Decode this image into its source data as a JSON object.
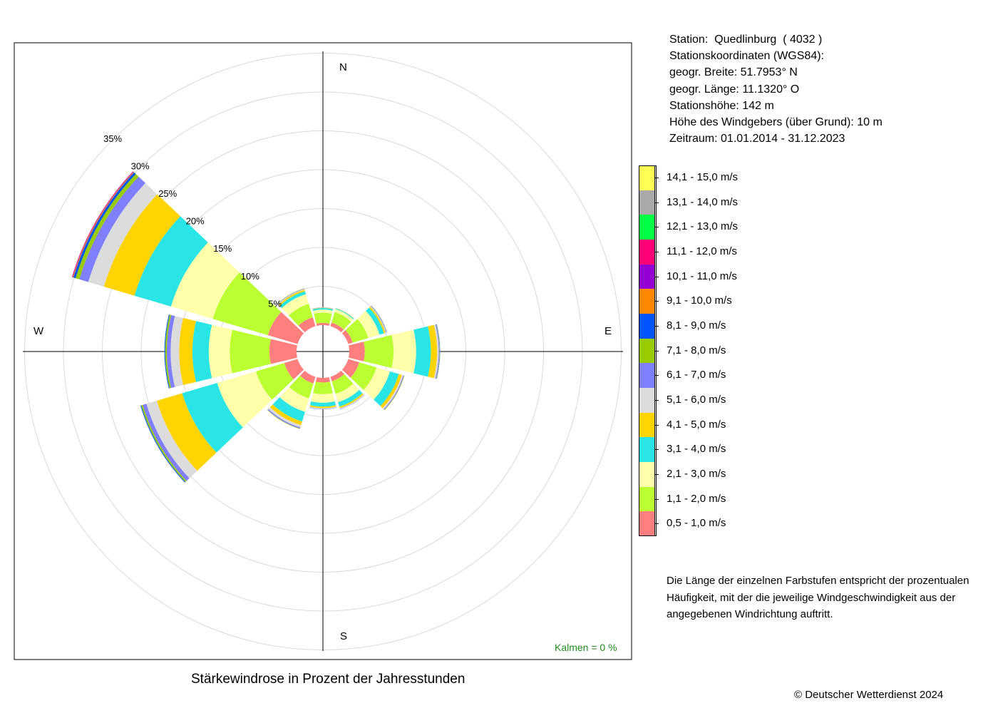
{
  "station_info": [
    "Station:  Quedlinburg  ( 4032 )",
    "Stationskoordinaten (WGS84):",
    "geogr. Breite: 51.7953° N",
    "geogr. Länge: 11.1320° O",
    "Stationshöhe: 142 m",
    "Höhe des Windgebers (über Grund): 10 m",
    "Zeitraum: 01.01.2014 - 31.12.2023"
  ],
  "legend": [
    {
      "label": "14,1 - 15,0 m/s",
      "color": "#ffff55"
    },
    {
      "label": "13,1 - 14,0 m/s",
      "color": "#a9a9a9"
    },
    {
      "label": "12,1 - 13,0 m/s",
      "color": "#00ff44"
    },
    {
      "label": "11,1 - 12,0 m/s",
      "color": "#ff0077"
    },
    {
      "label": "10,1 - 11,0 m/s",
      "color": "#9400d3"
    },
    {
      "label": "9,1 - 10,0 m/s",
      "color": "#ff8800"
    },
    {
      "label": "8,1 - 9,0 m/s",
      "color": "#0055ff"
    },
    {
      "label": "7,1 - 8,0 m/s",
      "color": "#99cc00"
    },
    {
      "label": "6,1 - 7,0 m/s",
      "color": "#8080ff"
    },
    {
      "label": "5,1 - 6,0 m/s",
      "color": "#dcdcdc"
    },
    {
      "label": "4,1 - 5,0 m/s",
      "color": "#ffd400"
    },
    {
      "label": "3,1 - 4,0 m/s",
      "color": "#2ae5e5"
    },
    {
      "label": "2,1 - 3,0 m/s",
      "color": "#ffffaa"
    },
    {
      "label": "1,1 - 2,0 m/s",
      "color": "#bbff33"
    },
    {
      "label": "0,5 - 1,0 m/s",
      "color": "#ff7f7f"
    }
  ],
  "note": "Die Länge der einzelnen Farbstufen entspricht der prozentualen Häufigkeit, mit der die jeweilige Windgeschwindigkeit aus der angegebenen Windrichtung auftritt.",
  "caption": "Stärkewindrose in Prozent der Jahresstunden",
  "copyright": "© Deutscher Wetterdienst  2024",
  "calm_label": "Kalmen  =  0 %",
  "calm_color": "#228b22",
  "compass": {
    "n": "N",
    "e": "E",
    "s": "S",
    "w": "W"
  },
  "chart_data": {
    "type": "windrose",
    "unit": "%",
    "rings": [
      5,
      10,
      15,
      20,
      25,
      30,
      35
    ],
    "ring_labels": [
      "5%",
      "10%",
      "15%",
      "20%",
      "25%",
      "30%",
      "35%"
    ],
    "calm_percent": 0,
    "directions_deg": [
      0,
      30,
      60,
      90,
      120,
      150,
      180,
      210,
      240,
      270,
      300,
      330
    ],
    "speed_classes": [
      "0,5 - 1,0 m/s",
      "1,1 - 2,0 m/s",
      "2,1 - 3,0 m/s",
      "3,1 - 4,0 m/s",
      "4,1 - 5,0 m/s",
      "5,1 - 6,0 m/s",
      "6,1 - 7,0 m/s",
      "7,1 - 8,0 m/s",
      "8,1 - 9,0 m/s",
      "9,1 - 10,0 m/s",
      "10,1 - 11,0 m/s",
      "11,1 - 12,0 m/s",
      "12,1 - 13,0 m/s",
      "13,1 - 14,0 m/s",
      "14,1 - 15,0 m/s"
    ],
    "series": [
      {
        "direction_deg": 0,
        "values": [
          0.3,
          1.3,
          0.4,
          0.2,
          0.05,
          0.03,
          0.02,
          0,
          0,
          0,
          0,
          0,
          0,
          0,
          0
        ]
      },
      {
        "direction_deg": 30,
        "values": [
          0.5,
          1.4,
          0.4,
          0.1,
          0.03,
          0.02,
          0,
          0,
          0,
          0,
          0,
          0,
          0,
          0,
          0
        ]
      },
      {
        "direction_deg": 60,
        "values": [
          0.6,
          2.1,
          1.5,
          0.6,
          0.2,
          0.1,
          0.05,
          0.03,
          0.02,
          0,
          0,
          0,
          0,
          0,
          0
        ]
      },
      {
        "direction_deg": 90,
        "values": [
          2.0,
          3.7,
          2.9,
          1.9,
          0.8,
          0.2,
          0.1,
          0.05,
          0.03,
          0,
          0,
          0,
          0,
          0,
          0
        ]
      },
      {
        "direction_deg": 120,
        "values": [
          1.5,
          2.3,
          1.8,
          1.2,
          0.4,
          0.2,
          0.1,
          0.05,
          0,
          0,
          0,
          0,
          0,
          0,
          0
        ]
      },
      {
        "direction_deg": 150,
        "values": [
          0.6,
          1.7,
          1.1,
          0.6,
          0.2,
          0.1,
          0.05,
          0,
          0,
          0,
          0,
          0,
          0,
          0,
          0
        ]
      },
      {
        "direction_deg": 180,
        "values": [
          0.6,
          1.5,
          1.1,
          0.5,
          0.2,
          0.1,
          0.05,
          0,
          0,
          0,
          0,
          0,
          0,
          0,
          0
        ]
      },
      {
        "direction_deg": 210,
        "values": [
          0.9,
          2.0,
          1.8,
          1.3,
          0.5,
          0.3,
          0.15,
          0.05,
          0,
          0,
          0,
          0,
          0,
          0,
          0
        ]
      },
      {
        "direction_deg": 240,
        "values": [
          1.8,
          3.8,
          5.2,
          4.7,
          3.4,
          1.4,
          0.5,
          0.2,
          0.1,
          0,
          0,
          0,
          0,
          0,
          0
        ]
      },
      {
        "direction_deg": 270,
        "values": [
          3.5,
          5.1,
          2.7,
          2.1,
          1.7,
          1.1,
          0.5,
          0.2,
          0.1,
          0,
          0,
          0,
          0,
          0,
          0
        ]
      },
      {
        "direction_deg": 300,
        "values": [
          4.0,
          7.4,
          5.6,
          4.9,
          4.1,
          2.1,
          1.2,
          0.5,
          0.3,
          0.1,
          0.05,
          0.05,
          0,
          0,
          0
        ]
      },
      {
        "direction_deg": 330,
        "values": [
          1.2,
          1.8,
          1.3,
          0.4,
          0.2,
          0.1,
          0.05,
          0.03,
          0,
          0,
          0,
          0,
          0,
          0,
          0
        ]
      }
    ],
    "grid": true
  }
}
